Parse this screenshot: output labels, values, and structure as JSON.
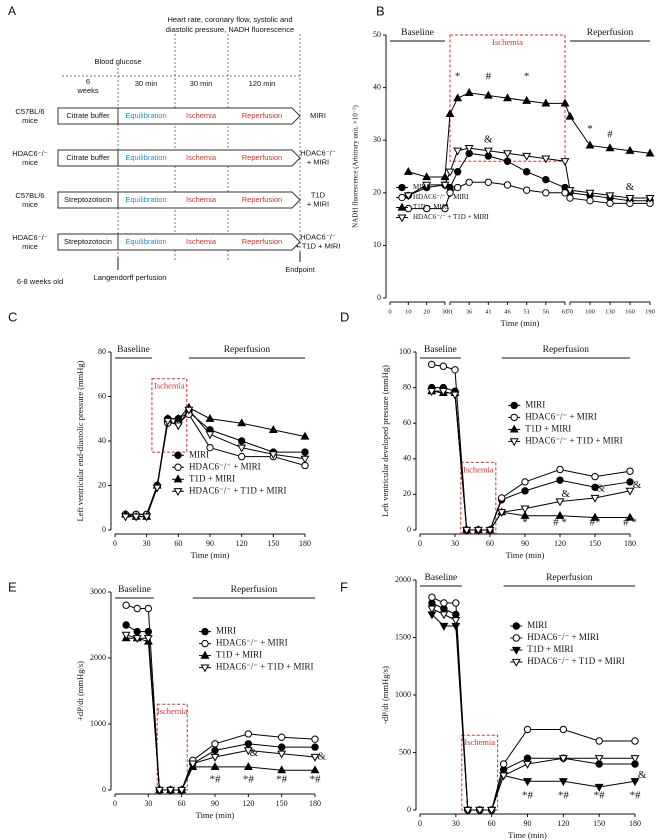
{
  "diagram": {
    "panel": "A",
    "top_note": [
      "Heart rate, coronary flow, systolic and",
      "diastolic pressure, NADH fluorescence"
    ],
    "blood_glucose": "Blood glucose",
    "weeks": [
      "6",
      "weeks"
    ],
    "equil_time": "30 min",
    "isch_time": "30 min",
    "rep_time": "120 min",
    "rows": [
      {
        "group": [
          "C57BL/6",
          "mice"
        ],
        "treatment": "Citrate buffer",
        "equilibration": "Equilibration",
        "ischemia": "Ischemia",
        "reperfusion": "Reperfusion",
        "outcome": [
          "MIRI"
        ]
      },
      {
        "group": [
          "HDAC6⁻/⁻",
          "mice"
        ],
        "treatment": "Citrate buffer",
        "equilibration": "Equilibration",
        "ischemia": "Ischemia",
        "reperfusion": "Reperfusion",
        "outcome": [
          "HDAC6⁻/⁻",
          "+ MIRI"
        ]
      },
      {
        "group": [
          "C57BL/6",
          "mice"
        ],
        "treatment": "Streptozotocin",
        "equilibration": "Equilibration",
        "ischemia": "Ischemia",
        "reperfusion": "Reperfusion",
        "outcome": [
          "T1D",
          "+ MIRI"
        ]
      },
      {
        "group": [
          "HDAC6⁻/⁻",
          "mice"
        ],
        "treatment": "Streptozotocin",
        "equilibration": "Equilibration",
        "ischemia": "Ischemia",
        "reperfusion": "Reperfusion",
        "outcome": [
          "HDAC6⁻/⁻",
          "+ T1D + MIRI"
        ]
      }
    ],
    "age": "6-8 weeks old",
    "perfusion": "Langendorff perfusion",
    "endpoint": "Endpoint"
  },
  "chart_data": [
    {
      "panel": "B",
      "type": "line",
      "xlabel": "Time (min)",
      "ylabel": "NADH fluorescence (Arbitrary unit, ×10⁻³)",
      "x": [
        10,
        20,
        30,
        31,
        33,
        36,
        41,
        46,
        51,
        56,
        61,
        70,
        100,
        130,
        160,
        190
      ],
      "xbreaks": [
        [
          0,
          30
        ],
        [
          31,
          61
        ],
        [
          70,
          190
        ]
      ],
      "xticks": [
        0,
        10,
        20,
        30,
        31,
        36,
        41,
        46,
        51,
        56,
        61,
        70,
        100,
        130,
        160,
        190
      ],
      "ylim": [
        0,
        50
      ],
      "yticks": [
        0,
        10,
        20,
        30,
        40,
        50
      ],
      "legend": "lower-left",
      "periods": [
        {
          "label": "Baseline",
          "x": [
            0,
            30
          ]
        },
        {
          "label": "Ischemia",
          "x": [
            31,
            61
          ],
          "y": [
            26,
            50
          ]
        },
        {
          "label": "Reperfusion",
          "x": [
            70,
            190
          ]
        }
      ],
      "series": [
        {
          "name": "MIRI",
          "color": "#000000",
          "marker": "circle",
          "filled": true,
          "values": [
            19.5,
            21,
            21.5,
            21,
            24,
            27.5,
            27,
            26,
            24,
            22.5,
            21,
            20,
            19.5,
            19,
            18.5,
            18.5
          ]
        },
        {
          "name": "HDAC6⁻/⁻ + MIRI",
          "color": "#000000",
          "marker": "circle",
          "filled": false,
          "values": [
            17,
            17,
            17,
            20,
            21,
            22,
            22,
            21.5,
            20.5,
            20,
            20,
            19,
            18.5,
            18,
            18,
            18
          ]
        },
        {
          "name": "T1D + MIRI",
          "color": "#000000",
          "marker": "triangle-up",
          "filled": true,
          "values": [
            24,
            23,
            23,
            35,
            38,
            39,
            38.5,
            38,
            37.5,
            37,
            37,
            34.5,
            29,
            28.5,
            28,
            27.5
          ]
        },
        {
          "name": "HDAC6⁻/⁻ + T1D + MIRI",
          "color": "#000000",
          "marker": "triangle-down",
          "filled": false,
          "values": [
            19.5,
            21.5,
            21.5,
            24,
            28,
            28.5,
            28,
            27.5,
            27,
            26.5,
            26,
            20.5,
            20,
            19.5,
            19,
            19
          ]
        }
      ],
      "annotations": [
        {
          "text": "*",
          "x": 33,
          "y": 42
        },
        {
          "text": "#",
          "x": 41,
          "y": 42
        },
        {
          "text": "*",
          "x": 51,
          "y": 42
        },
        {
          "text": "&",
          "x": 41,
          "y": 30
        },
        {
          "text": "*",
          "x": 100,
          "y": 32
        },
        {
          "text": "#",
          "x": 130,
          "y": 31
        },
        {
          "text": "&",
          "x": 160,
          "y": 21
        }
      ]
    },
    {
      "panel": "C",
      "type": "line",
      "xlabel": "Time (min)",
      "ylabel": "Left ventricular end-diastolic pressure (mmHg)",
      "x": [
        10,
        20,
        30,
        40,
        50,
        60,
        70,
        90,
        120,
        150,
        180
      ],
      "xlim": [
        0,
        180
      ],
      "xticks": [
        0,
        30,
        60,
        90,
        120,
        150,
        180
      ],
      "ylim": [
        0,
        80
      ],
      "yticks": [
        0,
        20,
        40,
        60,
        80
      ],
      "legend": "lower-center",
      "periods": [
        {
          "label": "Baseline",
          "x": [
            0,
            35
          ]
        },
        {
          "label": "Ischemia",
          "x": [
            35,
            68
          ],
          "y": [
            35,
            68
          ]
        },
        {
          "label": "Reperfusion",
          "x": [
            70,
            180
          ]
        }
      ],
      "series": [
        {
          "name": "MIRI",
          "color": "#000000",
          "marker": "circle",
          "filled": true,
          "values": [
            7,
            7,
            7,
            20,
            50,
            50,
            53,
            45,
            40,
            35,
            35
          ]
        },
        {
          "name": "HDAC6⁻/⁻ + MIRI",
          "color": "#000000",
          "marker": "circle",
          "filled": false,
          "values": [
            7,
            7,
            7,
            20,
            48,
            48,
            52,
            37,
            33,
            33,
            29
          ]
        },
        {
          "name": "T1D + MIRI",
          "color": "#000000",
          "marker": "triangle-up",
          "filled": true,
          "values": [
            7,
            6,
            6,
            20,
            50,
            50,
            55,
            50,
            48,
            45,
            42
          ]
        },
        {
          "name": "HDAC6⁻/⁻ + T1D + MIRI",
          "color": "#000000",
          "marker": "triangle-down",
          "filled": false,
          "values": [
            6,
            6,
            6,
            19,
            49,
            47,
            54,
            43,
            37,
            34,
            32
          ]
        }
      ]
    },
    {
      "panel": "D",
      "type": "line",
      "xlabel": "Time (min)",
      "ylabel": "Left ventricular developed pressure (mmHg)",
      "x": [
        10,
        20,
        30,
        40,
        50,
        60,
        70,
        90,
        120,
        150,
        180
      ],
      "xlim": [
        0,
        180
      ],
      "xticks": [
        0,
        30,
        60,
        90,
        120,
        150,
        180
      ],
      "ylim": [
        0,
        100
      ],
      "yticks": [
        0,
        20,
        40,
        60,
        80,
        100
      ],
      "legend": "center-right",
      "periods": [
        {
          "label": "Baseline",
          "x": [
            0,
            35
          ]
        },
        {
          "label": "Ischemia",
          "x": [
            35,
            65
          ],
          "y": [
            -2,
            38
          ]
        },
        {
          "label": "Reperfusion",
          "x": [
            70,
            180
          ]
        }
      ],
      "series": [
        {
          "name": "MIRI",
          "color": "#000000",
          "marker": "circle",
          "filled": true,
          "values": [
            80,
            80,
            78,
            0,
            0,
            0,
            17,
            22,
            28,
            24,
            27
          ]
        },
        {
          "name": "HDAC6⁻/⁻ + MIRI",
          "color": "#000000",
          "marker": "circle",
          "filled": false,
          "values": [
            93,
            92,
            90,
            0,
            0,
            0,
            18,
            27,
            34,
            30,
            33
          ]
        },
        {
          "name": "T1D + MIRI",
          "color": "#000000",
          "marker": "triangle-up",
          "filled": true,
          "values": [
            78,
            77,
            77,
            0,
            0,
            0,
            10,
            8,
            8,
            7,
            7
          ]
        },
        {
          "name": "HDAC6⁻/⁻ + T1D + MIRI",
          "color": "#000000",
          "marker": "triangle-down",
          "filled": false,
          "values": [
            78,
            78,
            76,
            0,
            0,
            0,
            10,
            12,
            16,
            18,
            22
          ]
        }
      ],
      "annotations": [
        {
          "text": "*",
          "x": 90,
          "y": 4
        },
        {
          "text": "# *",
          "x": 120,
          "y": 4
        },
        {
          "text": "#*",
          "x": 150,
          "y": 4
        },
        {
          "text": "# *",
          "x": 180,
          "y": 4
        },
        {
          "text": "&",
          "x": 125,
          "y": 20
        },
        {
          "text": "&",
          "x": 155,
          "y": 23
        },
        {
          "text": "&",
          "x": 186,
          "y": 25
        }
      ]
    },
    {
      "panel": "E",
      "type": "line",
      "xlabel": "Time (min)",
      "ylabel": "+dP/dt (mmHg/s)",
      "x": [
        10,
        20,
        30,
        40,
        50,
        60,
        70,
        90,
        120,
        150,
        180
      ],
      "xlim": [
        0,
        180
      ],
      "xticks": [
        0,
        30,
        60,
        90,
        120,
        150,
        180
      ],
      "ylim": [
        0,
        3000
      ],
      "yticks": [
        0,
        1000,
        2000,
        3000
      ],
      "legend": "upper-right",
      "periods": [
        {
          "label": "Baseline",
          "x": [
            0,
            35
          ]
        },
        {
          "label": "Ischemia",
          "x": [
            38,
            65
          ],
          "y": [
            0,
            1300
          ]
        },
        {
          "label": "Reperfusion",
          "x": [
            70,
            180
          ]
        }
      ],
      "series": [
        {
          "name": "MIRI",
          "color": "#000000",
          "marker": "circle",
          "filled": true,
          "values": [
            2500,
            2400,
            2400,
            0,
            0,
            0,
            400,
            600,
            700,
            650,
            650
          ]
        },
        {
          "name": "HDAC6⁻/⁻ + MIRI",
          "color": "#000000",
          "marker": "circle",
          "filled": false,
          "values": [
            2800,
            2750,
            2750,
            0,
            0,
            0,
            450,
            700,
            850,
            800,
            770
          ]
        },
        {
          "name": "T1D + MIRI",
          "color": "#000000",
          "marker": "triangle-up",
          "filled": true,
          "values": [
            2300,
            2300,
            2250,
            0,
            0,
            0,
            350,
            350,
            350,
            300,
            300
          ]
        },
        {
          "name": "HDAC6⁻/⁻ + T1D + MIRI",
          "color": "#000000",
          "marker": "triangle-down",
          "filled": false,
          "values": [
            2350,
            2300,
            2300,
            0,
            0,
            0,
            400,
            500,
            600,
            550,
            500
          ]
        }
      ],
      "annotations": [
        {
          "text": "*#",
          "x": 90,
          "y": 150
        },
        {
          "text": "*#",
          "x": 120,
          "y": 150
        },
        {
          "text": "*#",
          "x": 150,
          "y": 150
        },
        {
          "text": "*#",
          "x": 180,
          "y": 150
        },
        {
          "text": "&",
          "x": 125,
          "y": 550
        },
        {
          "text": "&",
          "x": 186,
          "y": 500
        }
      ]
    },
    {
      "panel": "F",
      "type": "line",
      "xlabel": "Time (min)",
      "ylabel": "-dP/dt (mmHg/s)",
      "x": [
        10,
        20,
        30,
        40,
        50,
        60,
        70,
        90,
        120,
        150,
        180
      ],
      "xlim": [
        0,
        180
      ],
      "xticks": [
        0,
        30,
        60,
        90,
        120,
        150,
        180
      ],
      "ylim": [
        0,
        2000
      ],
      "yticks": [
        0,
        500,
        1000,
        1500,
        2000
      ],
      "legend": "upper-right",
      "periods": [
        {
          "label": "Baseline",
          "x": [
            0,
            35
          ]
        },
        {
          "label": "Ischemia",
          "x": [
            35,
            65
          ],
          "y": [
            0,
            650
          ]
        },
        {
          "label": "Reperfusion",
          "x": [
            70,
            180
          ]
        }
      ],
      "series": [
        {
          "name": "MIRI",
          "color": "#000000",
          "marker": "circle",
          "filled": true,
          "values": [
            1800,
            1750,
            1700,
            0,
            0,
            0,
            350,
            450,
            450,
            400,
            400
          ]
        },
        {
          "name": "HDAC6⁻/⁻ + MIRI",
          "color": "#000000",
          "marker": "circle",
          "filled": false,
          "values": [
            1850,
            1800,
            1800,
            0,
            0,
            0,
            400,
            700,
            700,
            600,
            600
          ]
        },
        {
          "name": "T1D + MIRI",
          "color": "#000000",
          "marker": "triangle-down",
          "filled": true,
          "values": [
            1700,
            1600,
            1600,
            0,
            0,
            0,
            300,
            250,
            250,
            200,
            250
          ]
        },
        {
          "name": "HDAC6⁻/⁻ + T1D + MIRI",
          "color": "#000000",
          "marker": "triangle-down",
          "filled": false,
          "values": [
            1750,
            1700,
            1650,
            0,
            0,
            0,
            300,
            400,
            450,
            450,
            450
          ]
        }
      ],
      "annotations": [
        {
          "text": "*#",
          "x": 90,
          "y": 120
        },
        {
          "text": "*#",
          "x": 120,
          "y": 120
        },
        {
          "text": "*#",
          "x": 150,
          "y": 120
        },
        {
          "text": "*#",
          "x": 180,
          "y": 120
        },
        {
          "text": "&",
          "x": 186,
          "y": 300
        }
      ]
    }
  ]
}
